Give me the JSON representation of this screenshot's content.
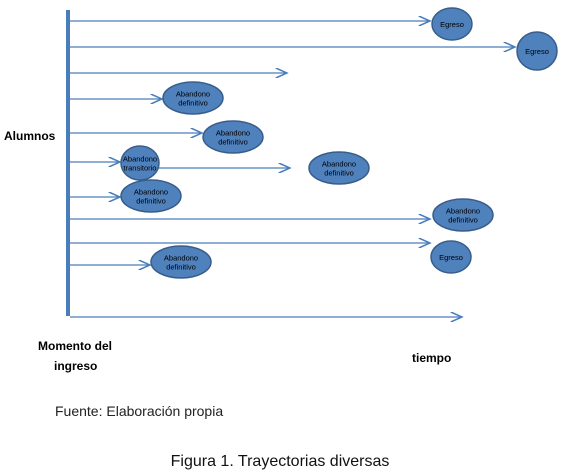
{
  "diagram": {
    "vertical_label": "Alumnos",
    "origin_label": [
      "Momento del",
      "ingreso"
    ],
    "time_label": "tiempo",
    "nodes": [
      {
        "lines": [
          "Egreso"
        ]
      },
      {
        "lines": [
          "Egreso"
        ]
      },
      {
        "lines": [
          "Abandono",
          "definitivo"
        ]
      },
      {
        "lines": [
          "Abandono",
          "definitivo"
        ]
      },
      {
        "lines": [
          "Abandono",
          "transitorio"
        ]
      },
      {
        "lines": [
          "Abandono",
          "definitivo"
        ]
      },
      {
        "lines": [
          "Abandono",
          "definitivo"
        ]
      },
      {
        "lines": [
          "Abandono",
          "definitivo"
        ]
      },
      {
        "lines": [
          "Egreso"
        ]
      },
      {
        "lines": [
          "Abandono",
          "definitivo"
        ]
      }
    ]
  },
  "source": "Fuente: Elaboración propia",
  "caption": "Figura 1. Trayectorias diversas"
}
